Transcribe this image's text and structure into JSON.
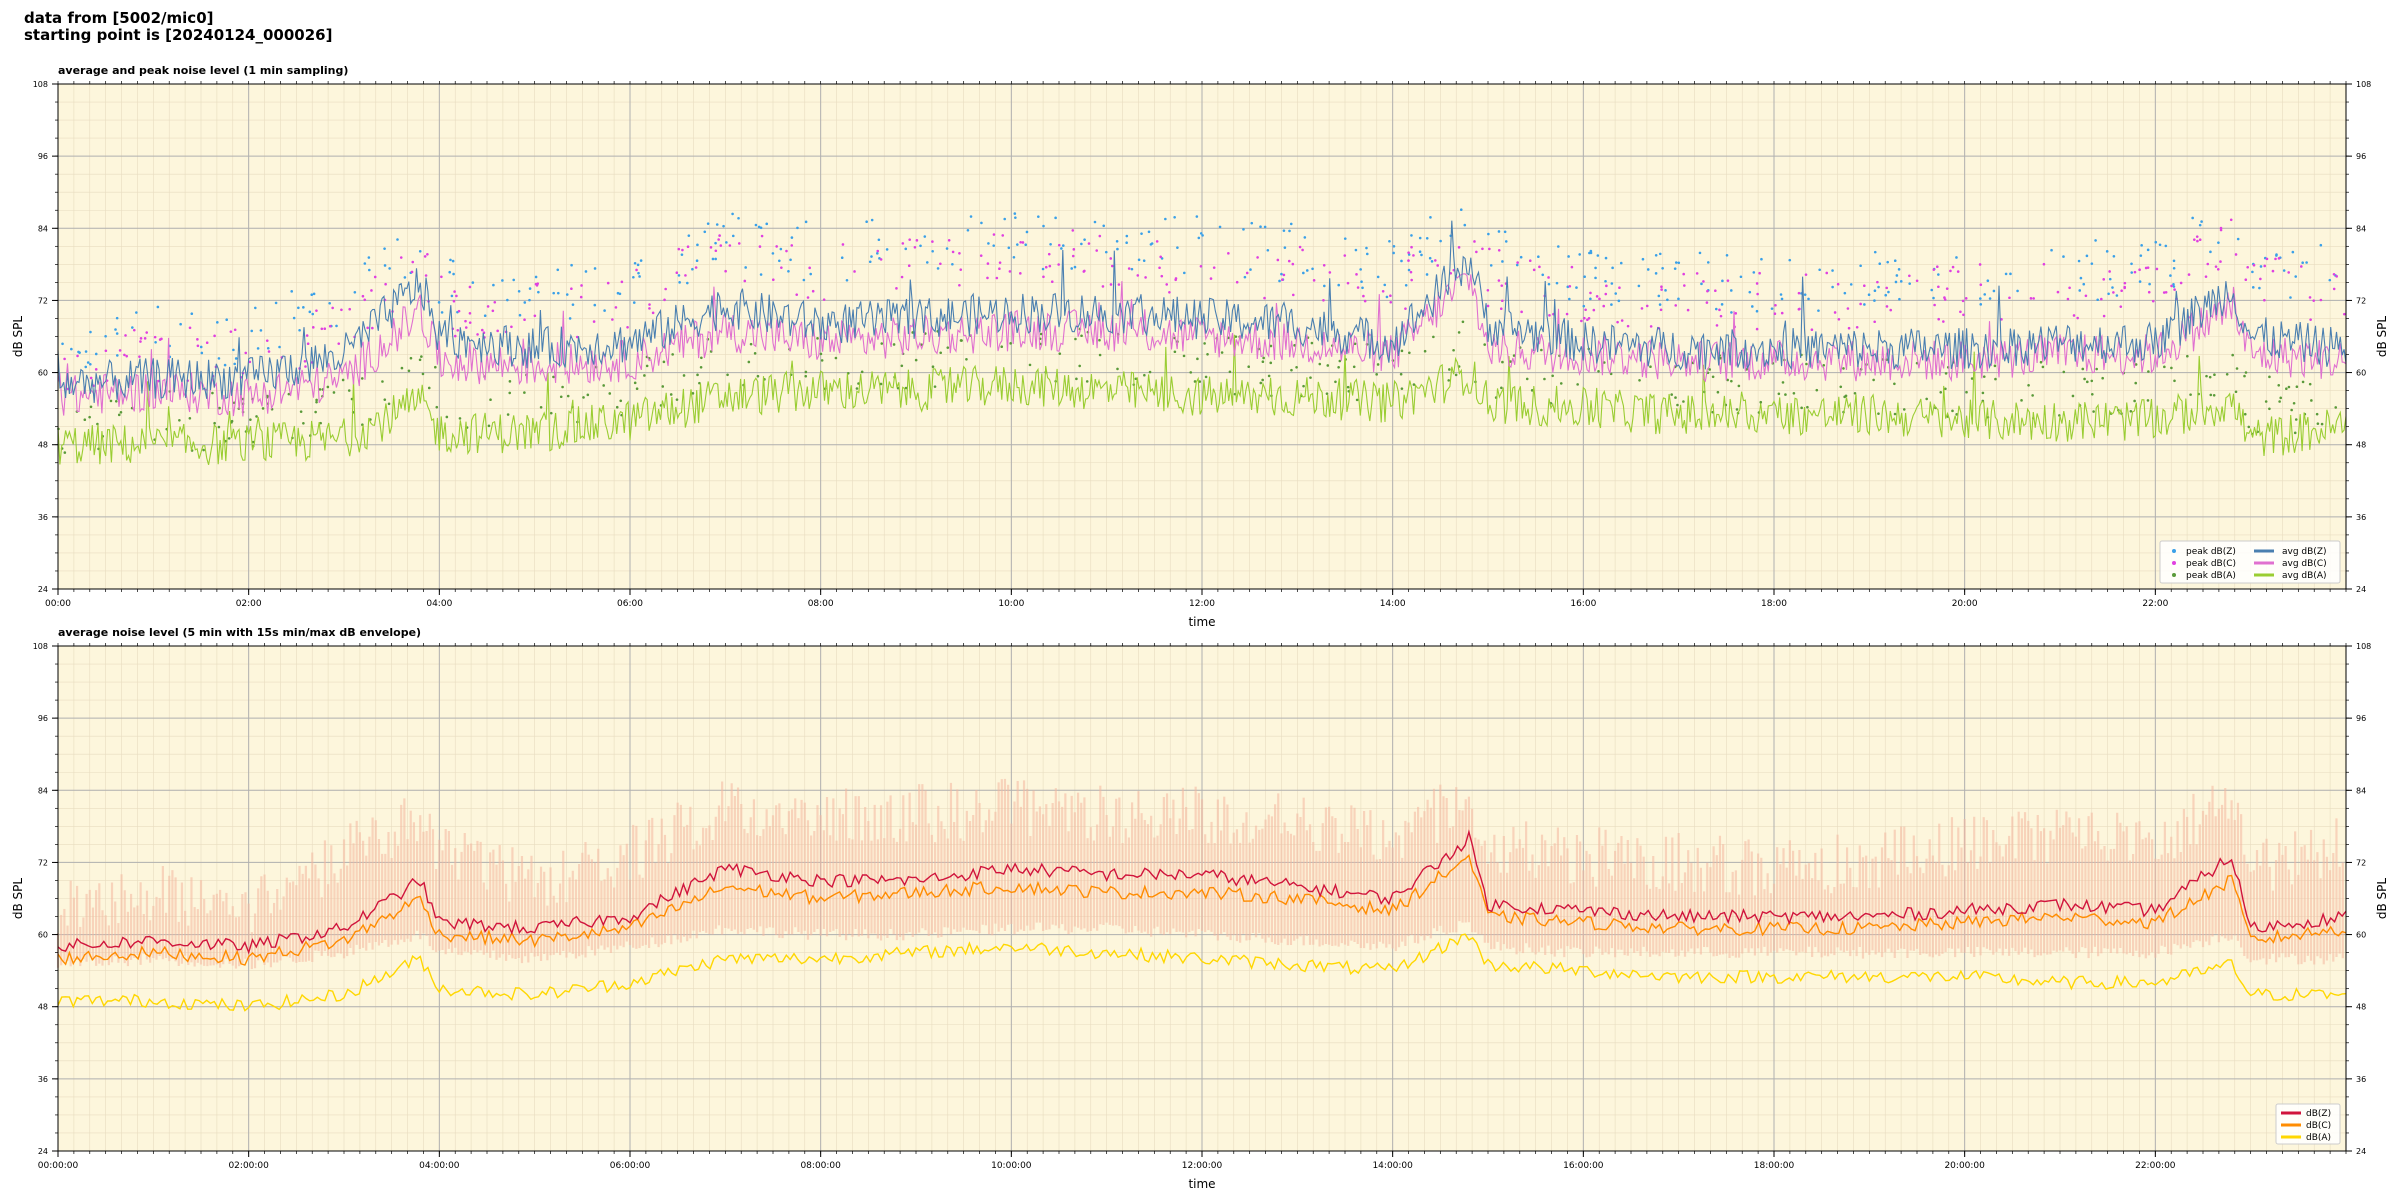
{
  "header": {
    "line1": "data from [5002/mic0]",
    "line2": "starting point is [20240124_000026]"
  },
  "colors": {
    "background": "#fdf6dc",
    "peak_z": "#3aa0e8",
    "peak_c": "#e040e0",
    "peak_a": "#5a9a3a",
    "avg_z": "#4a7fb0",
    "avg_c": "#e070d0",
    "avg_a": "#9acd32",
    "db_z": "#d0143c",
    "db_c": "#ff8c00",
    "db_a": "#ffd700",
    "envelope": "#f4b8a0"
  },
  "chart_data": [
    {
      "type": "line",
      "title": "average and peak noise level (1 min sampling)",
      "xlabel": "time",
      "ylabel": "dB SPL",
      "ylim": [
        24,
        108
      ],
      "yticks": [
        "24",
        "36",
        "48",
        "60",
        "72",
        "84",
        "96",
        "108"
      ],
      "xticks": [
        "00:00",
        "02:00",
        "04:00",
        "06:00",
        "08:00",
        "10:00",
        "12:00",
        "14:00",
        "16:00",
        "18:00",
        "20:00",
        "22:00"
      ],
      "xlim_hours": [
        0,
        24
      ],
      "grid": true,
      "legend_position": "lower-right",
      "legend": [
        "peak dB(Z)",
        "peak dB(C)",
        "peak dB(A)",
        "avg dB(Z)",
        "avg dB(C)",
        "avg dB(A)"
      ],
      "hours": [
        0,
        1,
        2,
        3,
        3.8,
        4,
        5,
        6,
        7,
        8,
        9,
        10,
        11,
        12,
        13,
        14,
        14.8,
        15,
        16,
        17,
        18,
        19,
        20,
        21,
        22,
        22.8,
        23,
        24
      ],
      "series": [
        {
          "name": "avg dB(Z)",
          "values": [
            58,
            59,
            59,
            63,
            75,
            66,
            64,
            65,
            71,
            68,
            69,
            70,
            70,
            69,
            68,
            65,
            79,
            68,
            65,
            64,
            64,
            64,
            64,
            65,
            65,
            74,
            66,
            64
          ]
        },
        {
          "name": "avg dB(C)",
          "values": [
            56,
            57,
            56,
            59,
            70,
            62,
            61,
            62,
            67,
            65,
            66,
            67,
            67,
            66,
            65,
            63,
            76,
            64,
            63,
            62,
            62,
            62,
            62,
            63,
            63,
            71,
            63,
            62
          ]
        },
        {
          "name": "avg dB(A)",
          "values": [
            48,
            48,
            48,
            49,
            55,
            50,
            50,
            52,
            56,
            57,
            57,
            58,
            57,
            56,
            56,
            55,
            60,
            55,
            54,
            53,
            53,
            53,
            52,
            52,
            52,
            55,
            49,
            51
          ]
        },
        {
          "name": "peak dB(Z)",
          "values": [
            65,
            66,
            66,
            72,
            82,
            75,
            73,
            75,
            82,
            80,
            81,
            82,
            82,
            81,
            80,
            77,
            86,
            79,
            76,
            75,
            75,
            75,
            76,
            77,
            77,
            86,
            78,
            76
          ]
        },
        {
          "name": "peak dB(C)",
          "values": [
            62,
            63,
            63,
            68,
            79,
            71,
            70,
            72,
            79,
            77,
            78,
            79,
            79,
            78,
            77,
            74,
            83,
            76,
            73,
            72,
            72,
            72,
            73,
            74,
            74,
            83,
            75,
            73
          ]
        },
        {
          "name": "peak dB(A)",
          "values": [
            51,
            52,
            52,
            54,
            60,
            55,
            55,
            57,
            62,
            62,
            62,
            63,
            62,
            61,
            61,
            60,
            65,
            60,
            59,
            58,
            58,
            58,
            57,
            57,
            57,
            60,
            54,
            56
          ]
        }
      ]
    },
    {
      "type": "line",
      "title": "average noise level (5 min with 15s min/max dB envelope)",
      "xlabel": "time",
      "ylabel": "dB SPL",
      "ylim": [
        24,
        108
      ],
      "yticks": [
        "24",
        "36",
        "48",
        "60",
        "72",
        "84",
        "96",
        "108"
      ],
      "xticks": [
        "00:00:00",
        "02:00:00",
        "04:00:00",
        "06:00:00",
        "08:00:00",
        "10:00:00",
        "12:00:00",
        "14:00:00",
        "16:00:00",
        "18:00:00",
        "20:00:00",
        "22:00:00"
      ],
      "xlim_hours": [
        0,
        24
      ],
      "grid": true,
      "legend_position": "lower-right",
      "legend": [
        "dB(Z)",
        "dB(C)",
        "dB(A)"
      ],
      "hours": [
        0,
        1,
        2,
        3,
        3.8,
        4,
        5,
        6,
        7,
        8,
        9,
        10,
        11,
        12,
        13,
        14,
        14.8,
        15,
        16,
        17,
        18,
        19,
        20,
        21,
        22,
        22.8,
        23,
        24
      ],
      "series": [
        {
          "name": "dB(Z)",
          "values": [
            58,
            59,
            58,
            61,
            69,
            62,
            61,
            63,
            71,
            69,
            69,
            71,
            70,
            70,
            68,
            66,
            76,
            65,
            64,
            63,
            63,
            63,
            64,
            65,
            64,
            73,
            61,
            63
          ]
        },
        {
          "name": "dB(C)",
          "values": [
            56,
            57,
            56,
            59,
            66,
            60,
            59,
            61,
            68,
            66,
            67,
            68,
            67,
            67,
            66,
            64,
            73,
            63,
            62,
            61,
            61,
            61,
            62,
            63,
            62,
            69,
            59,
            61
          ]
        },
        {
          "name": "dB(A)",
          "values": [
            49,
            49,
            48,
            50,
            56,
            51,
            50,
            52,
            56,
            56,
            57,
            58,
            57,
            56,
            55,
            54,
            60,
            55,
            54,
            53,
            53,
            53,
            53,
            52,
            52,
            55,
            50,
            50
          ]
        }
      ],
      "envelope": {
        "min": [
          55,
          56,
          55,
          57,
          60,
          57,
          56,
          58,
          61,
          60,
          60,
          61,
          61,
          60,
          59,
          58,
          62,
          58,
          57,
          57,
          57,
          57,
          57,
          57,
          57,
          60,
          56,
          56
        ],
        "max": [
          70,
          72,
          70,
          78,
          84,
          78,
          74,
          78,
          86,
          85,
          85,
          86,
          85,
          85,
          84,
          80,
          88,
          80,
          78,
          77,
          76,
          77,
          80,
          82,
          80,
          88,
          76,
          80
        ]
      }
    }
  ]
}
